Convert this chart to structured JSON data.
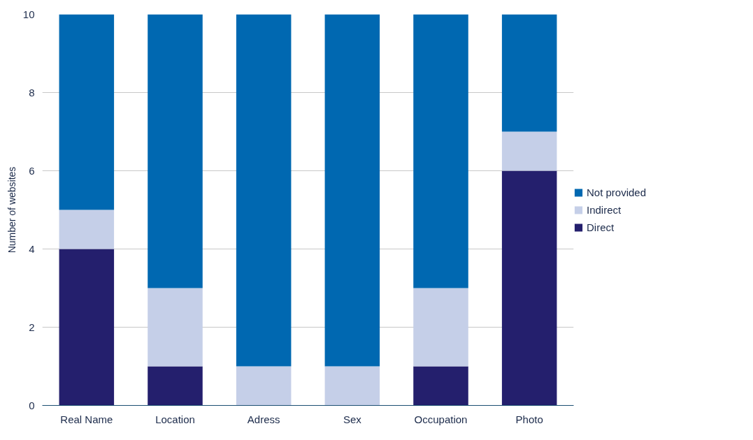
{
  "chart_data": {
    "type": "bar",
    "ylabel": "Number of websites",
    "stacked": true,
    "categories": [
      "Real Name",
      "Location",
      "Adress",
      "Sex",
      "Occupation",
      "Photo"
    ],
    "series": [
      {
        "name": "Direct",
        "color": "#241f6d",
        "values": [
          4,
          1,
          0,
          0,
          1,
          6
        ]
      },
      {
        "name": "Indirect",
        "color": "#c5cfe8",
        "values": [
          1,
          2,
          1,
          1,
          2,
          1
        ]
      },
      {
        "name": "Not provided",
        "color": "#0068b1",
        "values": [
          5,
          7,
          9,
          9,
          7,
          3
        ]
      }
    ],
    "ylim": [
      0,
      10
    ],
    "yticks": [
      0,
      2,
      4,
      6,
      8,
      10
    ],
    "grid": "y",
    "legend": "right"
  }
}
